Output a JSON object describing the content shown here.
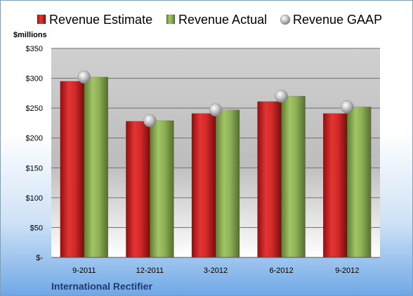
{
  "chart_data": {
    "type": "bar",
    "ylabel": "$millions",
    "company": "International Rectifier",
    "categories": [
      "9-2011",
      "12-2011",
      "3-2012",
      "6-2012",
      "9-2012"
    ],
    "ylim": [
      0,
      350
    ],
    "yticks": [
      0,
      50,
      100,
      150,
      200,
      250,
      300,
      350
    ],
    "yticklabels": [
      "$-",
      "$50",
      "$100",
      "$150",
      "$200",
      "$250",
      "$300",
      "$350"
    ],
    "grid": true,
    "legend_position": "top",
    "series": [
      {
        "name": "Revenue Estimate",
        "kind": "bar",
        "color": "#d42a2a",
        "values": [
          295,
          228,
          241,
          261,
          241
        ]
      },
      {
        "name": "Revenue Actual",
        "kind": "bar",
        "color": "#8fb257",
        "values": [
          302,
          229,
          247,
          270,
          252
        ]
      },
      {
        "name": "Revenue GAAP",
        "kind": "marker",
        "color": "#b8b8b8",
        "values": [
          302,
          229,
          247,
          270,
          252
        ]
      }
    ]
  }
}
